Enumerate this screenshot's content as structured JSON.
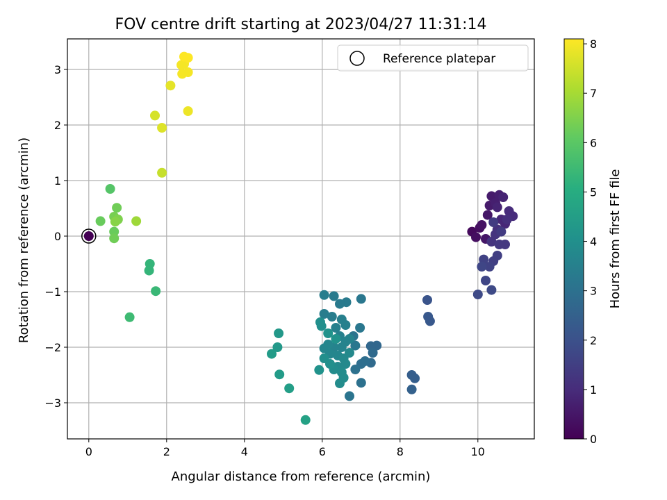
{
  "chart_data": {
    "type": "scatter",
    "title": "FOV centre drift starting at 2023/04/27 11:31:14",
    "xlabel": "Angular distance from reference (arcmin)",
    "ylabel": "Rotation from reference (arcmin)",
    "xlim": [
      -0.55,
      11.45
    ],
    "ylim": [
      -3.65,
      3.55
    ],
    "xticks": [
      0,
      2,
      4,
      6,
      8,
      10
    ],
    "yticks": [
      -3,
      -2,
      -1,
      0,
      1,
      2,
      3
    ],
    "xtick_labels": [
      "0",
      "2",
      "4",
      "6",
      "8",
      "10"
    ],
    "ytick_labels": [
      "−3",
      "−2",
      "−1",
      "0",
      "1",
      "2",
      "3"
    ],
    "grid": true,
    "legend": {
      "placement": "top-right",
      "label": "Reference platepar"
    },
    "colorbar": {
      "label": "Hours from first FF file",
      "range": [
        0,
        8.1
      ],
      "ticks": [
        0,
        1,
        2,
        3,
        4,
        5,
        6,
        7,
        8
      ],
      "tick_labels": [
        "0",
        "1",
        "2",
        "3",
        "4",
        "5",
        "6",
        "7",
        "8"
      ],
      "colormap": "viridis"
    },
    "reference_point": {
      "x": 0,
      "y": 0
    },
    "points": [
      {
        "x": 0.0,
        "y": 0.0,
        "h": 0.0
      },
      {
        "x": 9.85,
        "y": 0.08,
        "h": 0.2
      },
      {
        "x": 9.95,
        "y": -0.02,
        "h": 0.3
      },
      {
        "x": 10.05,
        "y": 0.15,
        "h": 0.3
      },
      {
        "x": 10.1,
        "y": 0.2,
        "h": 0.4
      },
      {
        "x": 10.2,
        "y": -0.05,
        "h": 0.5
      },
      {
        "x": 10.25,
        "y": 0.38,
        "h": 0.5
      },
      {
        "x": 10.3,
        "y": 0.55,
        "h": 0.6
      },
      {
        "x": 10.35,
        "y": 0.72,
        "h": 0.6
      },
      {
        "x": 10.45,
        "y": 0.6,
        "h": 0.7
      },
      {
        "x": 10.55,
        "y": 0.74,
        "h": 0.7
      },
      {
        "x": 10.65,
        "y": 0.7,
        "h": 0.8
      },
      {
        "x": 10.5,
        "y": 0.52,
        "h": 0.8
      },
      {
        "x": 10.6,
        "y": 0.3,
        "h": 0.9
      },
      {
        "x": 10.7,
        "y": 0.22,
        "h": 0.9
      },
      {
        "x": 10.8,
        "y": 0.45,
        "h": 1.0
      },
      {
        "x": 10.9,
        "y": 0.36,
        "h": 1.0
      },
      {
        "x": 10.75,
        "y": 0.3,
        "h": 1.1
      },
      {
        "x": 10.5,
        "y": 0.12,
        "h": 1.1
      },
      {
        "x": 10.45,
        "y": 0.03,
        "h": 1.2
      },
      {
        "x": 10.35,
        "y": -0.1,
        "h": 1.2
      },
      {
        "x": 10.55,
        "y": -0.15,
        "h": 1.3
      },
      {
        "x": 10.7,
        "y": -0.15,
        "h": 1.3
      },
      {
        "x": 10.6,
        "y": 0.08,
        "h": 1.4
      },
      {
        "x": 10.4,
        "y": 0.25,
        "h": 1.4
      },
      {
        "x": 10.5,
        "y": -0.35,
        "h": 1.5
      },
      {
        "x": 10.4,
        "y": -0.45,
        "h": 1.5
      },
      {
        "x": 10.3,
        "y": -0.55,
        "h": 1.6
      },
      {
        "x": 10.15,
        "y": -0.42,
        "h": 1.6
      },
      {
        "x": 10.1,
        "y": -0.55,
        "h": 1.7
      },
      {
        "x": 10.2,
        "y": -0.8,
        "h": 1.7
      },
      {
        "x": 10.35,
        "y": -0.97,
        "h": 1.8
      },
      {
        "x": 10.0,
        "y": -1.05,
        "h": 1.8
      },
      {
        "x": 8.7,
        "y": -1.15,
        "h": 2.1
      },
      {
        "x": 8.72,
        "y": -1.45,
        "h": 2.2
      },
      {
        "x": 8.77,
        "y": -1.53,
        "h": 2.2
      },
      {
        "x": 8.3,
        "y": -2.5,
        "h": 2.4
      },
      {
        "x": 8.38,
        "y": -2.56,
        "h": 2.4
      },
      {
        "x": 8.3,
        "y": -2.76,
        "h": 2.5
      },
      {
        "x": 7.4,
        "y": -1.97,
        "h": 2.7
      },
      {
        "x": 7.25,
        "y": -1.98,
        "h": 2.7
      },
      {
        "x": 7.3,
        "y": -2.1,
        "h": 2.8
      },
      {
        "x": 7.25,
        "y": -2.28,
        "h": 2.8
      },
      {
        "x": 7.1,
        "y": -2.25,
        "h": 2.9
      },
      {
        "x": 7.0,
        "y": -2.3,
        "h": 2.9
      },
      {
        "x": 7.0,
        "y": -2.64,
        "h": 3.0
      },
      {
        "x": 6.85,
        "y": -2.4,
        "h": 3.0
      },
      {
        "x": 6.7,
        "y": -2.88,
        "h": 3.1
      },
      {
        "x": 6.8,
        "y": -1.8,
        "h": 3.1
      },
      {
        "x": 6.85,
        "y": -1.97,
        "h": 3.2
      },
      {
        "x": 6.97,
        "y": -1.65,
        "h": 3.2
      },
      {
        "x": 7.0,
        "y": -1.13,
        "h": 3.2
      },
      {
        "x": 6.62,
        "y": -1.19,
        "h": 3.3
      },
      {
        "x": 6.45,
        "y": -1.22,
        "h": 3.3
      },
      {
        "x": 6.3,
        "y": -1.08,
        "h": 3.3
      },
      {
        "x": 6.05,
        "y": -1.06,
        "h": 3.4
      },
      {
        "x": 6.05,
        "y": -1.4,
        "h": 3.4
      },
      {
        "x": 6.25,
        "y": -1.45,
        "h": 3.4
      },
      {
        "x": 6.5,
        "y": -1.5,
        "h": 3.5
      },
      {
        "x": 6.6,
        "y": -1.6,
        "h": 3.5
      },
      {
        "x": 6.35,
        "y": -1.65,
        "h": 3.5
      },
      {
        "x": 6.45,
        "y": -1.8,
        "h": 3.5
      },
      {
        "x": 6.6,
        "y": -1.9,
        "h": 3.6
      },
      {
        "x": 6.7,
        "y": -1.85,
        "h": 3.6
      },
      {
        "x": 6.5,
        "y": -2.0,
        "h": 3.6
      },
      {
        "x": 6.3,
        "y": -2.0,
        "h": 3.6
      },
      {
        "x": 6.15,
        "y": -1.95,
        "h": 3.7
      },
      {
        "x": 6.05,
        "y": -2.02,
        "h": 3.7
      },
      {
        "x": 6.2,
        "y": -2.12,
        "h": 3.7
      },
      {
        "x": 6.4,
        "y": -2.15,
        "h": 3.7
      },
      {
        "x": 6.55,
        "y": -2.2,
        "h": 3.8
      },
      {
        "x": 6.7,
        "y": -2.1,
        "h": 3.8
      },
      {
        "x": 6.6,
        "y": -2.3,
        "h": 3.8
      },
      {
        "x": 6.4,
        "y": -2.35,
        "h": 3.8
      },
      {
        "x": 6.3,
        "y": -2.4,
        "h": 3.9
      },
      {
        "x": 6.5,
        "y": -2.45,
        "h": 3.9
      },
      {
        "x": 6.55,
        "y": -2.55,
        "h": 3.9
      },
      {
        "x": 6.45,
        "y": -2.65,
        "h": 3.9
      },
      {
        "x": 6.2,
        "y": -2.3,
        "h": 4.0
      },
      {
        "x": 6.05,
        "y": -2.2,
        "h": 4.0
      },
      {
        "x": 5.95,
        "y": -1.55,
        "h": 4.0
      },
      {
        "x": 5.98,
        "y": -1.62,
        "h": 4.0
      },
      {
        "x": 5.92,
        "y": -2.41,
        "h": 4.1
      },
      {
        "x": 6.15,
        "y": -1.75,
        "h": 4.1
      },
      {
        "x": 6.35,
        "y": -1.85,
        "h": 4.1
      },
      {
        "x": 4.88,
        "y": -1.75,
        "h": 4.3
      },
      {
        "x": 4.85,
        "y": -2.0,
        "h": 4.3
      },
      {
        "x": 4.7,
        "y": -2.12,
        "h": 4.4
      },
      {
        "x": 4.9,
        "y": -2.49,
        "h": 4.4
      },
      {
        "x": 5.15,
        "y": -2.74,
        "h": 4.5
      },
      {
        "x": 5.57,
        "y": -3.31,
        "h": 4.6
      },
      {
        "x": 1.57,
        "y": -0.5,
        "h": 5.3
      },
      {
        "x": 1.55,
        "y": -0.62,
        "h": 5.3
      },
      {
        "x": 1.72,
        "y": -0.99,
        "h": 5.4
      },
      {
        "x": 1.05,
        "y": -1.46,
        "h": 5.5
      },
      {
        "x": 0.55,
        "y": 0.85,
        "h": 5.9
      },
      {
        "x": 0.3,
        "y": 0.27,
        "h": 6.2
      },
      {
        "x": 0.65,
        "y": 0.08,
        "h": 6.2
      },
      {
        "x": 0.65,
        "y": -0.04,
        "h": 6.3
      },
      {
        "x": 0.72,
        "y": 0.51,
        "h": 6.3
      },
      {
        "x": 0.65,
        "y": 0.35,
        "h": 6.4
      },
      {
        "x": 0.75,
        "y": 0.3,
        "h": 6.5
      },
      {
        "x": 0.68,
        "y": 0.26,
        "h": 6.6
      },
      {
        "x": 1.22,
        "y": 0.27,
        "h": 6.9
      },
      {
        "x": 1.88,
        "y": 1.14,
        "h": 7.4
      },
      {
        "x": 1.7,
        "y": 2.17,
        "h": 7.6
      },
      {
        "x": 1.88,
        "y": 1.95,
        "h": 7.7
      },
      {
        "x": 2.1,
        "y": 2.71,
        "h": 7.8
      },
      {
        "x": 2.55,
        "y": 2.25,
        "h": 7.9
      },
      {
        "x": 2.4,
        "y": 2.92,
        "h": 8.0
      },
      {
        "x": 2.45,
        "y": 3.1,
        "h": 8.0
      },
      {
        "x": 2.55,
        "y": 2.95,
        "h": 8.0
      },
      {
        "x": 2.38,
        "y": 3.08,
        "h": 8.0
      },
      {
        "x": 2.45,
        "y": 3.23,
        "h": 8.1
      },
      {
        "x": 2.55,
        "y": 3.21,
        "h": 8.1
      }
    ]
  }
}
